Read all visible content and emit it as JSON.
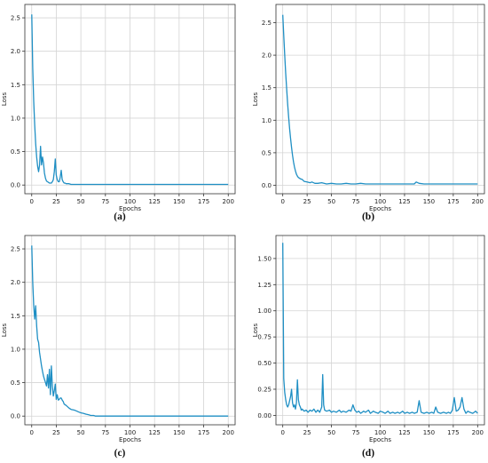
{
  "chart_data": [
    {
      "type": "line",
      "caption": "(a)",
      "xlabel": "Epochs",
      "ylabel": "Loss",
      "xlim": [
        -7,
        207
      ],
      "ylim": [
        -0.13,
        2.7
      ],
      "xticks": [
        0,
        25,
        50,
        75,
        100,
        125,
        150,
        175,
        200
      ],
      "xtick_labels": [
        "0",
        "25",
        "50",
        "75",
        "100",
        "125",
        "150",
        "175",
        "200"
      ],
      "yticks": [
        0.0,
        0.5,
        1.0,
        1.5,
        2.0,
        2.5
      ],
      "ytick_labels": [
        "0.0",
        "0.5",
        "1.0",
        "1.5",
        "2.0",
        "2.5"
      ],
      "grid": true,
      "color": "#1f8fc4",
      "x": [
        0,
        1,
        2,
        3,
        4,
        5,
        6,
        7,
        8,
        9,
        10,
        11,
        12,
        13,
        14,
        15,
        16,
        17,
        18,
        19,
        20,
        21,
        22,
        23,
        24,
        25,
        26,
        27,
        28,
        29,
        30,
        31,
        32,
        33,
        34,
        35,
        36,
        37,
        38,
        40,
        45,
        50,
        55,
        60,
        65,
        70,
        75,
        80,
        85,
        90,
        95,
        100,
        105,
        110,
        115,
        120,
        125,
        130,
        135,
        140,
        145,
        150,
        155,
        160,
        165,
        170,
        175,
        180,
        185,
        190,
        195,
        200
      ],
      "y": [
        2.55,
        1.75,
        1.25,
        0.9,
        0.62,
        0.42,
        0.28,
        0.2,
        0.3,
        0.58,
        0.3,
        0.42,
        0.33,
        0.18,
        0.1,
        0.06,
        0.05,
        0.04,
        0.03,
        0.03,
        0.03,
        0.05,
        0.08,
        0.2,
        0.39,
        0.15,
        0.08,
        0.05,
        0.05,
        0.12,
        0.22,
        0.08,
        0.05,
        0.03,
        0.03,
        0.02,
        0.02,
        0.02,
        0.02,
        0.01,
        0.01,
        0.01,
        0.01,
        0.01,
        0.01,
        0.01,
        0.01,
        0.01,
        0.01,
        0.01,
        0.01,
        0.01,
        0.01,
        0.01,
        0.01,
        0.01,
        0.01,
        0.01,
        0.01,
        0.01,
        0.01,
        0.01,
        0.01,
        0.01,
        0.01,
        0.01,
        0.01,
        0.01,
        0.01,
        0.01,
        0.01,
        0.01
      ]
    },
    {
      "type": "line",
      "caption": "(b)",
      "xlabel": "Epochs",
      "ylabel": "Loss",
      "xlim": [
        -7,
        207
      ],
      "ylim": [
        -0.13,
        2.78
      ],
      "xticks": [
        0,
        25,
        50,
        75,
        100,
        125,
        150,
        175,
        200
      ],
      "xtick_labels": [
        "0",
        "25",
        "50",
        "75",
        "100",
        "125",
        "150",
        "175",
        "200"
      ],
      "yticks": [
        0.0,
        0.5,
        1.0,
        1.5,
        2.0,
        2.5
      ],
      "ytick_labels": [
        "0.0",
        "0.5",
        "1.0",
        "1.5",
        "2.0",
        "2.5"
      ],
      "grid": true,
      "color": "#1f8fc4",
      "x": [
        0,
        1,
        2,
        3,
        4,
        5,
        6,
        7,
        8,
        9,
        10,
        11,
        12,
        13,
        14,
        15,
        16,
        18,
        20,
        22,
        25,
        28,
        30,
        33,
        36,
        40,
        45,
        50,
        55,
        60,
        65,
        70,
        75,
        80,
        85,
        90,
        95,
        100,
        105,
        110,
        115,
        120,
        125,
        130,
        135,
        137,
        140,
        145,
        150,
        155,
        160,
        165,
        170,
        175,
        180,
        185,
        190,
        195,
        200
      ],
      "y": [
        2.62,
        2.3,
        2.0,
        1.72,
        1.48,
        1.25,
        1.05,
        0.87,
        0.72,
        0.58,
        0.46,
        0.36,
        0.28,
        0.22,
        0.17,
        0.14,
        0.12,
        0.1,
        0.09,
        0.06,
        0.05,
        0.04,
        0.05,
        0.03,
        0.03,
        0.04,
        0.02,
        0.03,
        0.02,
        0.02,
        0.03,
        0.02,
        0.02,
        0.03,
        0.02,
        0.02,
        0.02,
        0.02,
        0.02,
        0.02,
        0.02,
        0.02,
        0.02,
        0.02,
        0.02,
        0.05,
        0.03,
        0.02,
        0.02,
        0.02,
        0.02,
        0.02,
        0.02,
        0.02,
        0.02,
        0.02,
        0.02,
        0.02,
        0.02
      ]
    },
    {
      "type": "line",
      "caption": "(c)",
      "xlabel": "Epochs",
      "ylabel": "Loss",
      "xlim": [
        -7,
        207
      ],
      "ylim": [
        -0.13,
        2.7
      ],
      "xticks": [
        0,
        25,
        50,
        75,
        100,
        125,
        150,
        175,
        200
      ],
      "xtick_labels": [
        "0",
        "25",
        "50",
        "75",
        "100",
        "125",
        "150",
        "175",
        "200"
      ],
      "yticks": [
        0.0,
        0.5,
        1.0,
        1.5,
        2.0,
        2.5
      ],
      "ytick_labels": [
        "0.0",
        "0.5",
        "1.0",
        "1.5",
        "2.0",
        "2.5"
      ],
      "grid": true,
      "color": "#1f8fc4",
      "x": [
        0,
        1,
        2,
        3,
        4,
        5,
        6,
        7,
        8,
        9,
        10,
        11,
        12,
        13,
        14,
        15,
        16,
        17,
        18,
        19,
        20,
        21,
        22,
        23,
        24,
        25,
        26,
        27,
        28,
        29,
        30,
        31,
        32,
        33,
        35,
        38,
        40,
        43,
        45,
        48,
        50,
        53,
        55,
        58,
        60,
        63,
        65,
        68,
        70,
        75,
        80,
        90,
        100,
        125,
        150,
        175,
        200
      ],
      "y": [
        2.55,
        2.0,
        1.65,
        1.45,
        1.65,
        1.35,
        1.15,
        1.1,
        0.95,
        0.85,
        0.75,
        0.67,
        0.6,
        0.55,
        0.5,
        0.45,
        0.62,
        0.42,
        0.7,
        0.32,
        0.75,
        0.45,
        0.3,
        0.38,
        0.48,
        0.25,
        0.32,
        0.24,
        0.25,
        0.27,
        0.27,
        0.24,
        0.22,
        0.18,
        0.16,
        0.12,
        0.1,
        0.09,
        0.08,
        0.06,
        0.05,
        0.04,
        0.03,
        0.02,
        0.01,
        0.01,
        0.0,
        0.0,
        0.0,
        0.0,
        0.0,
        0.0,
        0.0,
        0.0,
        0.0,
        0.0,
        0.0
      ]
    },
    {
      "type": "line",
      "caption": "(d)",
      "xlabel": "Epochs",
      "ylabel": "Loss",
      "xlim": [
        -7,
        207
      ],
      "ylim": [
        -0.09,
        1.72
      ],
      "xticks": [
        0,
        25,
        50,
        75,
        100,
        125,
        150,
        175,
        200
      ],
      "xtick_labels": [
        "0",
        "25",
        "50",
        "75",
        "100",
        "125",
        "150",
        "175",
        "200"
      ],
      "yticks": [
        0.0,
        0.25,
        0.5,
        0.75,
        1.0,
        1.25,
        1.5
      ],
      "ytick_labels": [
        "0.00",
        "0.25",
        "0.50",
        "0.75",
        "1.00",
        "1.25",
        "1.50"
      ],
      "grid": true,
      "color": "#1f8fc4",
      "x": [
        0,
        1,
        2,
        3,
        4,
        5,
        6,
        7,
        8,
        9,
        10,
        11,
        12,
        13,
        14,
        15,
        16,
        17,
        18,
        19,
        20,
        22,
        24,
        26,
        28,
        30,
        32,
        34,
        36,
        38,
        40,
        41,
        42,
        43,
        45,
        48,
        50,
        52,
        55,
        58,
        60,
        62,
        65,
        68,
        70,
        72,
        74,
        76,
        78,
        80,
        83,
        85,
        88,
        90,
        93,
        95,
        98,
        100,
        103,
        105,
        108,
        110,
        113,
        115,
        118,
        120,
        123,
        125,
        128,
        130,
        133,
        135,
        138,
        140,
        142,
        145,
        148,
        150,
        153,
        155,
        157,
        159,
        162,
        165,
        168,
        170,
        172,
        174,
        176,
        178,
        180,
        182,
        184,
        186,
        188,
        190,
        192,
        195,
        198,
        200
      ],
      "y": [
        1.65,
        0.35,
        0.22,
        0.15,
        0.1,
        0.08,
        0.1,
        0.14,
        0.18,
        0.25,
        0.12,
        0.08,
        0.1,
        0.06,
        0.12,
        0.34,
        0.15,
        0.1,
        0.08,
        0.05,
        0.06,
        0.04,
        0.05,
        0.03,
        0.05,
        0.04,
        0.06,
        0.03,
        0.05,
        0.03,
        0.08,
        0.39,
        0.1,
        0.05,
        0.04,
        0.05,
        0.03,
        0.04,
        0.03,
        0.05,
        0.03,
        0.04,
        0.03,
        0.05,
        0.04,
        0.1,
        0.05,
        0.03,
        0.04,
        0.02,
        0.04,
        0.03,
        0.05,
        0.02,
        0.04,
        0.03,
        0.02,
        0.04,
        0.03,
        0.02,
        0.04,
        0.02,
        0.03,
        0.02,
        0.03,
        0.02,
        0.04,
        0.02,
        0.03,
        0.02,
        0.03,
        0.02,
        0.03,
        0.14,
        0.03,
        0.02,
        0.03,
        0.02,
        0.03,
        0.02,
        0.08,
        0.03,
        0.02,
        0.03,
        0.02,
        0.03,
        0.02,
        0.05,
        0.17,
        0.04,
        0.05,
        0.08,
        0.17,
        0.06,
        0.02,
        0.04,
        0.03,
        0.02,
        0.04,
        0.02
      ]
    }
  ]
}
